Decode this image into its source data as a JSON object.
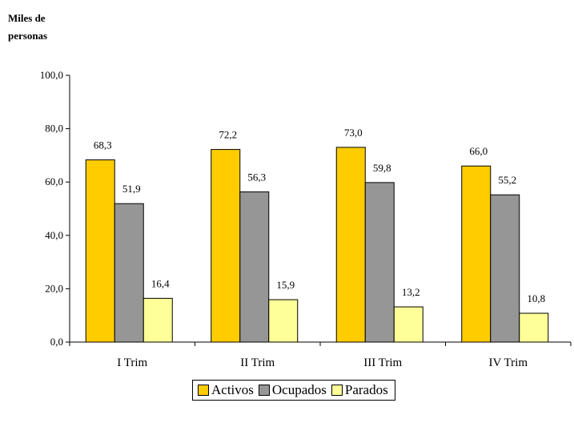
{
  "chart_data": {
    "type": "bar",
    "ylabel": "Miles de personas",
    "ylim": [
      0,
      100
    ],
    "yticks": [
      "0,0",
      "20,0",
      "40,0",
      "60,0",
      "80,0",
      "100,0"
    ],
    "categories": [
      "I Trim",
      "II Trim",
      "III Trim",
      "IV Trim"
    ],
    "series": [
      {
        "name": "Activos",
        "color": "#FFCC00",
        "values": [
          68.3,
          72.2,
          73.0,
          66.0
        ],
        "labels": [
          "68,3",
          "72,2",
          "73,0",
          "66,0"
        ]
      },
      {
        "name": "Ocupados",
        "color": "#969696",
        "values": [
          51.9,
          56.3,
          59.8,
          55.2
        ],
        "labels": [
          "51,9",
          "56,3",
          "59,8",
          "55,2"
        ]
      },
      {
        "name": "Parados",
        "color": "#FFFF99",
        "values": [
          16.4,
          15.9,
          13.2,
          10.8
        ],
        "labels": [
          "16,4",
          "15,9",
          "13,2",
          "10,8"
        ]
      }
    ],
    "grid": false,
    "legend_position": "bottom"
  }
}
